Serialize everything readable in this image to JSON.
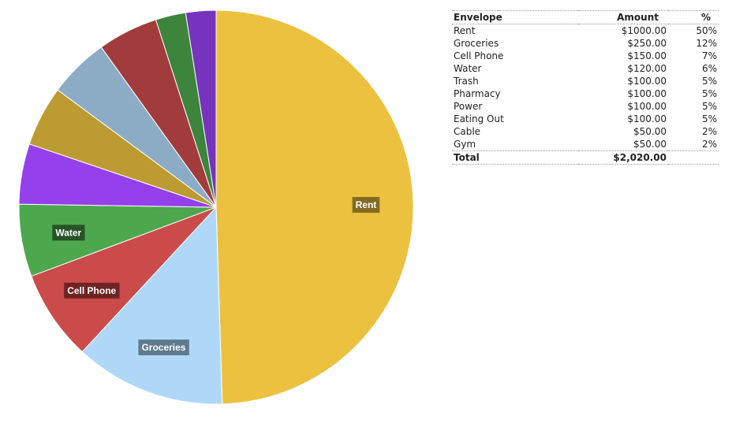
{
  "chart_data": {
    "type": "pie",
    "slices": [
      {
        "name": "Rent",
        "value": 1000.0,
        "color": "#ecc13f",
        "label_shown": true
      },
      {
        "name": "Groceries",
        "value": 250.0,
        "color": "#afd8f8",
        "label_shown": true
      },
      {
        "name": "Cell Phone",
        "value": 150.0,
        "color": "#cb4b4b",
        "label_shown": true
      },
      {
        "name": "Water",
        "value": 120.0,
        "color": "#4da74d",
        "label_shown": true
      },
      {
        "name": "Trash",
        "value": 100.0,
        "color": "#9440ed",
        "label_shown": false
      },
      {
        "name": "Pharmacy",
        "value": 100.0,
        "color": "#bd9b33",
        "label_shown": false
      },
      {
        "name": "Power",
        "value": 100.0,
        "color": "#8cacc6",
        "label_shown": false
      },
      {
        "name": "Eating Out",
        "value": 100.0,
        "color": "#a23c3c",
        "label_shown": false
      },
      {
        "name": "Cable",
        "value": 50.0,
        "color": "#3d853d",
        "label_shown": false
      },
      {
        "name": "Gym",
        "value": 50.0,
        "color": "#7633bd",
        "label_shown": false
      }
    ],
    "label_background_colors": {
      "Rent": "#836b23",
      "Groceries": "#5f7a8f",
      "Cell Phone": "#6f2424",
      "Water": "#275427"
    }
  },
  "table": {
    "headers": {
      "envelope": "Envelope",
      "amount": "Amount",
      "pct": "%"
    },
    "rows": [
      {
        "envelope": "Rent",
        "amount": "$1000.00",
        "pct": "50%"
      },
      {
        "envelope": "Groceries",
        "amount": "$250.00",
        "pct": "12%"
      },
      {
        "envelope": "Cell Phone",
        "amount": "$150.00",
        "pct": "7%"
      },
      {
        "envelope": "Water",
        "amount": "$120.00",
        "pct": "6%"
      },
      {
        "envelope": "Trash",
        "amount": "$100.00",
        "pct": "5%"
      },
      {
        "envelope": "Pharmacy",
        "amount": "$100.00",
        "pct": "5%"
      },
      {
        "envelope": "Power",
        "amount": "$100.00",
        "pct": "5%"
      },
      {
        "envelope": "Eating Out",
        "amount": "$100.00",
        "pct": "5%"
      },
      {
        "envelope": "Cable",
        "amount": "$50.00",
        "pct": "2%"
      },
      {
        "envelope": "Gym",
        "amount": "$50.00",
        "pct": "2%"
      }
    ],
    "total": {
      "label": "Total",
      "amount": "$2,020.00"
    }
  }
}
